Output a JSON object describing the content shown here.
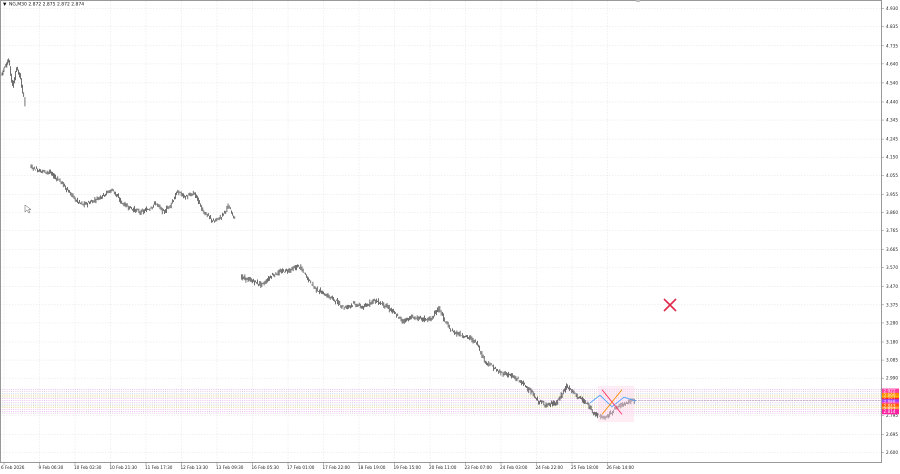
{
  "header": {
    "arrow": "▼",
    "text": "NG,M30 2.872 2.875 2.872 2.874"
  },
  "colors": {
    "background": "#ffffff",
    "grid": "#d9d9d9",
    "candle": "#111111",
    "border": "#808080",
    "marker": "#e0284a",
    "zone_lines": [
      "#d77fe6",
      "#cf9ccf",
      "#a0b8f0",
      "#d0a060",
      "#c8c850",
      "#e080e0"
    ],
    "price_tags": [
      "#ff3fa6",
      "#ff8a00",
      "#ffb000",
      "#ff2020",
      "#a040ff",
      "#ff40c0",
      "#ff6000",
      "#ff9f40",
      "#ff20a0"
    ]
  },
  "chart_data": {
    "type": "candlestick",
    "symbol": "NG,M30",
    "ohlc_header": {
      "open": 2.872,
      "high": 2.875,
      "low": 2.872,
      "close": 2.874
    },
    "ylim": [
      2.55,
      4.97
    ],
    "y_ticks": [
      "4.930",
      "4.835",
      "4.735",
      "4.640",
      "4.540",
      "4.440",
      "4.345",
      "4.245",
      "4.150",
      "4.055",
      "3.955",
      "3.860",
      "3.765",
      "3.665",
      "3.570",
      "3.470",
      "3.375",
      "3.280",
      "3.180",
      "3.085",
      "2.990",
      "2.890",
      "2.795",
      "2.695",
      "2.600"
    ],
    "x_ticks": [
      "6 Feb 2026",
      "9 Feb 06:30",
      "10 Feb 02:30",
      "10 Feb 21:30",
      "11 Feb 17:30",
      "12 Feb 13:30",
      "13 Feb 09:30",
      "16 Feb 05:30",
      "17 Feb 01:00",
      "17 Feb 22:00",
      "18 Feb 19:00",
      "19 Feb 15:00",
      "20 Feb 11:00",
      "23 Feb 07:00",
      "24 Feb 03:00",
      "24 Feb 22:00",
      "25 Feb 18:00",
      "26 Feb 14:00"
    ],
    "price_path": [
      {
        "t": 0.0,
        "p": 4.58
      },
      {
        "t": 0.4,
        "p": 4.63
      },
      {
        "t": 0.8,
        "p": 4.66
      },
      {
        "t": 1.2,
        "p": 4.52
      },
      {
        "t": 1.6,
        "p": 4.62
      },
      {
        "t": 2.0,
        "p": 4.56
      },
      {
        "t": 2.5,
        "p": 4.43
      },
      {
        "t": 3.0,
        "p": 4.1
      },
      {
        "t": 4.0,
        "p": 4.08
      },
      {
        "t": 5.0,
        "p": 4.07
      },
      {
        "t": 6.0,
        "p": 4.03
      },
      {
        "t": 7.0,
        "p": 3.97
      },
      {
        "t": 7.8,
        "p": 3.92
      },
      {
        "t": 8.5,
        "p": 3.9
      },
      {
        "t": 9.5,
        "p": 3.92
      },
      {
        "t": 10.5,
        "p": 3.95
      },
      {
        "t": 11.5,
        "p": 3.98
      },
      {
        "t": 12.5,
        "p": 3.91
      },
      {
        "t": 13.5,
        "p": 3.88
      },
      {
        "t": 14.5,
        "p": 3.86
      },
      {
        "t": 15.3,
        "p": 3.88
      },
      {
        "t": 16.0,
        "p": 3.91
      },
      {
        "t": 16.8,
        "p": 3.86
      },
      {
        "t": 17.5,
        "p": 3.9
      },
      {
        "t": 18.3,
        "p": 3.97
      },
      {
        "t": 19.0,
        "p": 3.94
      },
      {
        "t": 20.0,
        "p": 3.96
      },
      {
        "t": 21.0,
        "p": 3.86
      },
      {
        "t": 22.0,
        "p": 3.81
      },
      {
        "t": 22.8,
        "p": 3.84
      },
      {
        "t": 23.5,
        "p": 3.89
      },
      {
        "t": 24.2,
        "p": 3.83
      },
      {
        "t": 24.8,
        "p": 3.52
      },
      {
        "t": 26.0,
        "p": 3.5
      },
      {
        "t": 27.0,
        "p": 3.48
      },
      {
        "t": 28.0,
        "p": 3.53
      },
      {
        "t": 29.0,
        "p": 3.55
      },
      {
        "t": 30.0,
        "p": 3.56
      },
      {
        "t": 30.8,
        "p": 3.58
      },
      {
        "t": 31.5,
        "p": 3.53
      },
      {
        "t": 32.5,
        "p": 3.46
      },
      {
        "t": 33.5,
        "p": 3.43
      },
      {
        "t": 34.5,
        "p": 3.4
      },
      {
        "t": 35.5,
        "p": 3.36
      },
      {
        "t": 36.5,
        "p": 3.38
      },
      {
        "t": 37.5,
        "p": 3.36
      },
      {
        "t": 38.5,
        "p": 3.4
      },
      {
        "t": 39.5,
        "p": 3.38
      },
      {
        "t": 40.5,
        "p": 3.34
      },
      {
        "t": 41.5,
        "p": 3.29
      },
      {
        "t": 42.5,
        "p": 3.31
      },
      {
        "t": 43.5,
        "p": 3.3
      },
      {
        "t": 44.5,
        "p": 3.3
      },
      {
        "t": 45.3,
        "p": 3.36
      },
      {
        "t": 45.8,
        "p": 3.3
      },
      {
        "t": 46.5,
        "p": 3.24
      },
      {
        "t": 47.5,
        "p": 3.22
      },
      {
        "t": 48.5,
        "p": 3.2
      },
      {
        "t": 49.3,
        "p": 3.17
      },
      {
        "t": 50.0,
        "p": 3.08
      },
      {
        "t": 50.6,
        "p": 3.06
      },
      {
        "t": 51.5,
        "p": 3.02
      },
      {
        "t": 52.5,
        "p": 3.01
      },
      {
        "t": 53.5,
        "p": 2.98
      },
      {
        "t": 54.5,
        "p": 2.94
      },
      {
        "t": 55.5,
        "p": 2.87
      },
      {
        "t": 56.5,
        "p": 2.85
      },
      {
        "t": 57.5,
        "p": 2.86
      },
      {
        "t": 58.5,
        "p": 2.95
      },
      {
        "t": 59.5,
        "p": 2.9
      },
      {
        "t": 60.5,
        "p": 2.86
      },
      {
        "t": 61.5,
        "p": 2.8
      },
      {
        "t": 62.5,
        "p": 2.78
      },
      {
        "t": 63.5,
        "p": 2.83
      },
      {
        "t": 64.5,
        "p": 2.86
      },
      {
        "t": 65.5,
        "p": 2.874
      }
    ],
    "price_tags": [
      "2.922",
      "2.899",
      "2.884",
      "2.874",
      "2.866",
      "2.852",
      "2.843",
      "2.827",
      "2.814"
    ],
    "grid": true
  }
}
